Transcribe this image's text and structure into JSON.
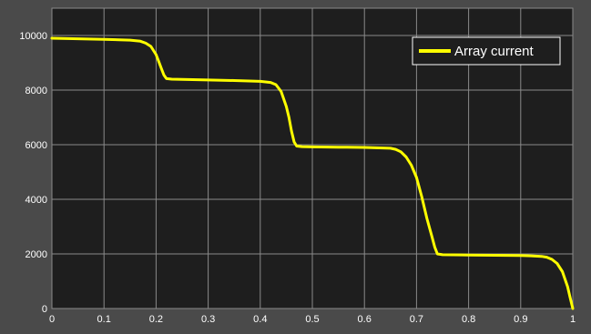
{
  "chart_data": {
    "type": "line",
    "title": "",
    "xlabel": "",
    "ylabel": "",
    "xlim": [
      0,
      1
    ],
    "ylim": [
      0,
      11000
    ],
    "x_ticks": [
      0,
      0.1,
      0.2,
      0.3,
      0.4,
      0.5,
      0.6,
      0.7,
      0.8,
      0.9,
      1
    ],
    "x_tick_labels": [
      "0",
      "0.1",
      "0.2",
      "0.3",
      "0.4",
      "0.5",
      "0.6",
      "0.7",
      "0.8",
      "0.9",
      "1"
    ],
    "y_ticks": [
      0,
      2000,
      4000,
      6000,
      8000,
      10000
    ],
    "y_tick_labels": [
      "0",
      "2000",
      "4000",
      "6000",
      "8000",
      "10000"
    ],
    "grid": true,
    "legend_position": "top-right",
    "colors": {
      "background": "#4a4a4a",
      "plot_area": "#1e1e1e",
      "grid": "#8a8a8a",
      "text": "#ffffff",
      "series": "#ffff00"
    },
    "series": [
      {
        "name": "Array current",
        "x": [
          0,
          0.05,
          0.1,
          0.15,
          0.17,
          0.18,
          0.19,
          0.2,
          0.205,
          0.21,
          0.215,
          0.22,
          0.23,
          0.25,
          0.3,
          0.35,
          0.4,
          0.42,
          0.43,
          0.44,
          0.45,
          0.455,
          0.46,
          0.465,
          0.47,
          0.48,
          0.5,
          0.55,
          0.6,
          0.65,
          0.66,
          0.67,
          0.68,
          0.69,
          0.7,
          0.71,
          0.72,
          0.73,
          0.735,
          0.74,
          0.75,
          0.8,
          0.85,
          0.9,
          0.92,
          0.94,
          0.95,
          0.96,
          0.97,
          0.98,
          0.99,
          0.995,
          1.0
        ],
        "y": [
          9900,
          9880,
          9860,
          9830,
          9790,
          9720,
          9600,
          9300,
          9050,
          8800,
          8550,
          8420,
          8400,
          8390,
          8370,
          8350,
          8320,
          8280,
          8200,
          7950,
          7400,
          7000,
          6500,
          6100,
          5950,
          5930,
          5920,
          5910,
          5900,
          5870,
          5830,
          5740,
          5550,
          5250,
          4800,
          4100,
          3300,
          2600,
          2250,
          2000,
          1970,
          1960,
          1950,
          1940,
          1930,
          1910,
          1880,
          1800,
          1650,
          1350,
          800,
          400,
          0
        ]
      }
    ]
  }
}
